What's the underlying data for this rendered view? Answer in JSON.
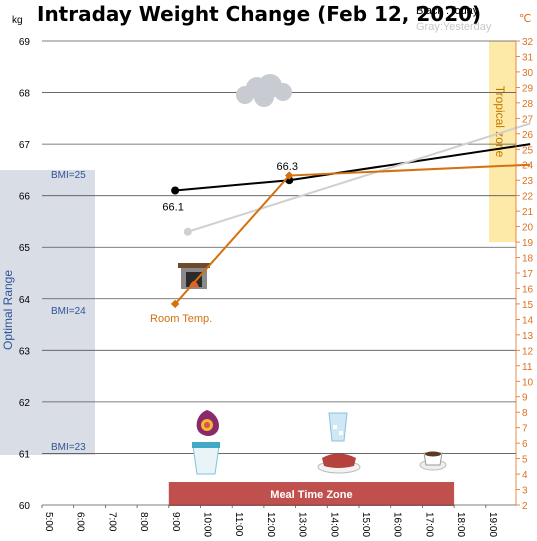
{
  "chart_data": {
    "type": "line",
    "title": "Intraday Weight Change (Feb 12, 2020)",
    "legend": [
      "Black :Today",
      "Gray:Yesterday"
    ],
    "y_left_unit": "kg",
    "y_right_unit": "℃",
    "ylim_left": [
      60,
      69
    ],
    "ylim_right": [
      2,
      32
    ],
    "y_left_ticks": [
      "60",
      "61",
      "62",
      "63",
      "64",
      "65",
      "66",
      "67",
      "68",
      "69"
    ],
    "y_right_ticks": [
      "2",
      "3",
      "4",
      "5",
      "6",
      "7",
      "8",
      "9",
      "10",
      "11",
      "12",
      "13",
      "14",
      "15",
      "16",
      "17",
      "18",
      "19",
      "20",
      "21",
      "22",
      "23",
      "24",
      "25",
      "26",
      "27",
      "28",
      "29",
      "30",
      "31",
      "32"
    ],
    "x_ticks": [
      "5:00",
      "6:00",
      "7:00",
      "8:00",
      "9:00",
      "10:00",
      "11:00",
      "12:00",
      "13:00",
      "14:00",
      "15:00",
      "16:00",
      "17:00",
      "18:00",
      "19:00"
    ],
    "xlim": [
      5,
      20.4
    ],
    "grid": "horizontal",
    "series": [
      {
        "name": "Today",
        "color": "#000000",
        "axis": "left",
        "marker": "circle",
        "x": [
          9.2,
          12.8,
          20.4
        ],
        "y": [
          66.1,
          66.3,
          67.0
        ]
      },
      {
        "name": "Yesterday",
        "color": "#d0d0d0",
        "axis": "left",
        "marker": "circle",
        "x": [
          9.6,
          20.4
        ],
        "y": [
          65.3,
          67.4
        ]
      },
      {
        "name": "Room Temp.",
        "color": "#d4700f",
        "axis": "right",
        "marker": "diamond",
        "x": [
          9.2,
          12.8,
          20.4
        ],
        "y": [
          15.0,
          23.3,
          24.0
        ]
      }
    ],
    "labels": {
      "today_start": "66.1",
      "today_mid": "66.3",
      "room_temp": "Room Temp."
    },
    "bands": {
      "optimal": {
        "label": "Optimal Range",
        "color": "#d9dde5"
      },
      "tropical": {
        "label": "Tropical zone",
        "color": "#fde9a8",
        "from": 19,
        "to": 32
      },
      "meal": {
        "label": "Meal Time Zone",
        "color": "#c0504d",
        "from": 9,
        "to": 18
      },
      "bmi": [
        "BMI=25",
        "BMI=24",
        "BMI=23"
      ]
    },
    "icons": [
      "cloud-icon",
      "fireplace-icon",
      "fig-icon",
      "yogurt-icon",
      "water-glass-icon",
      "steak-icon",
      "coffee-cup-icon"
    ]
  }
}
